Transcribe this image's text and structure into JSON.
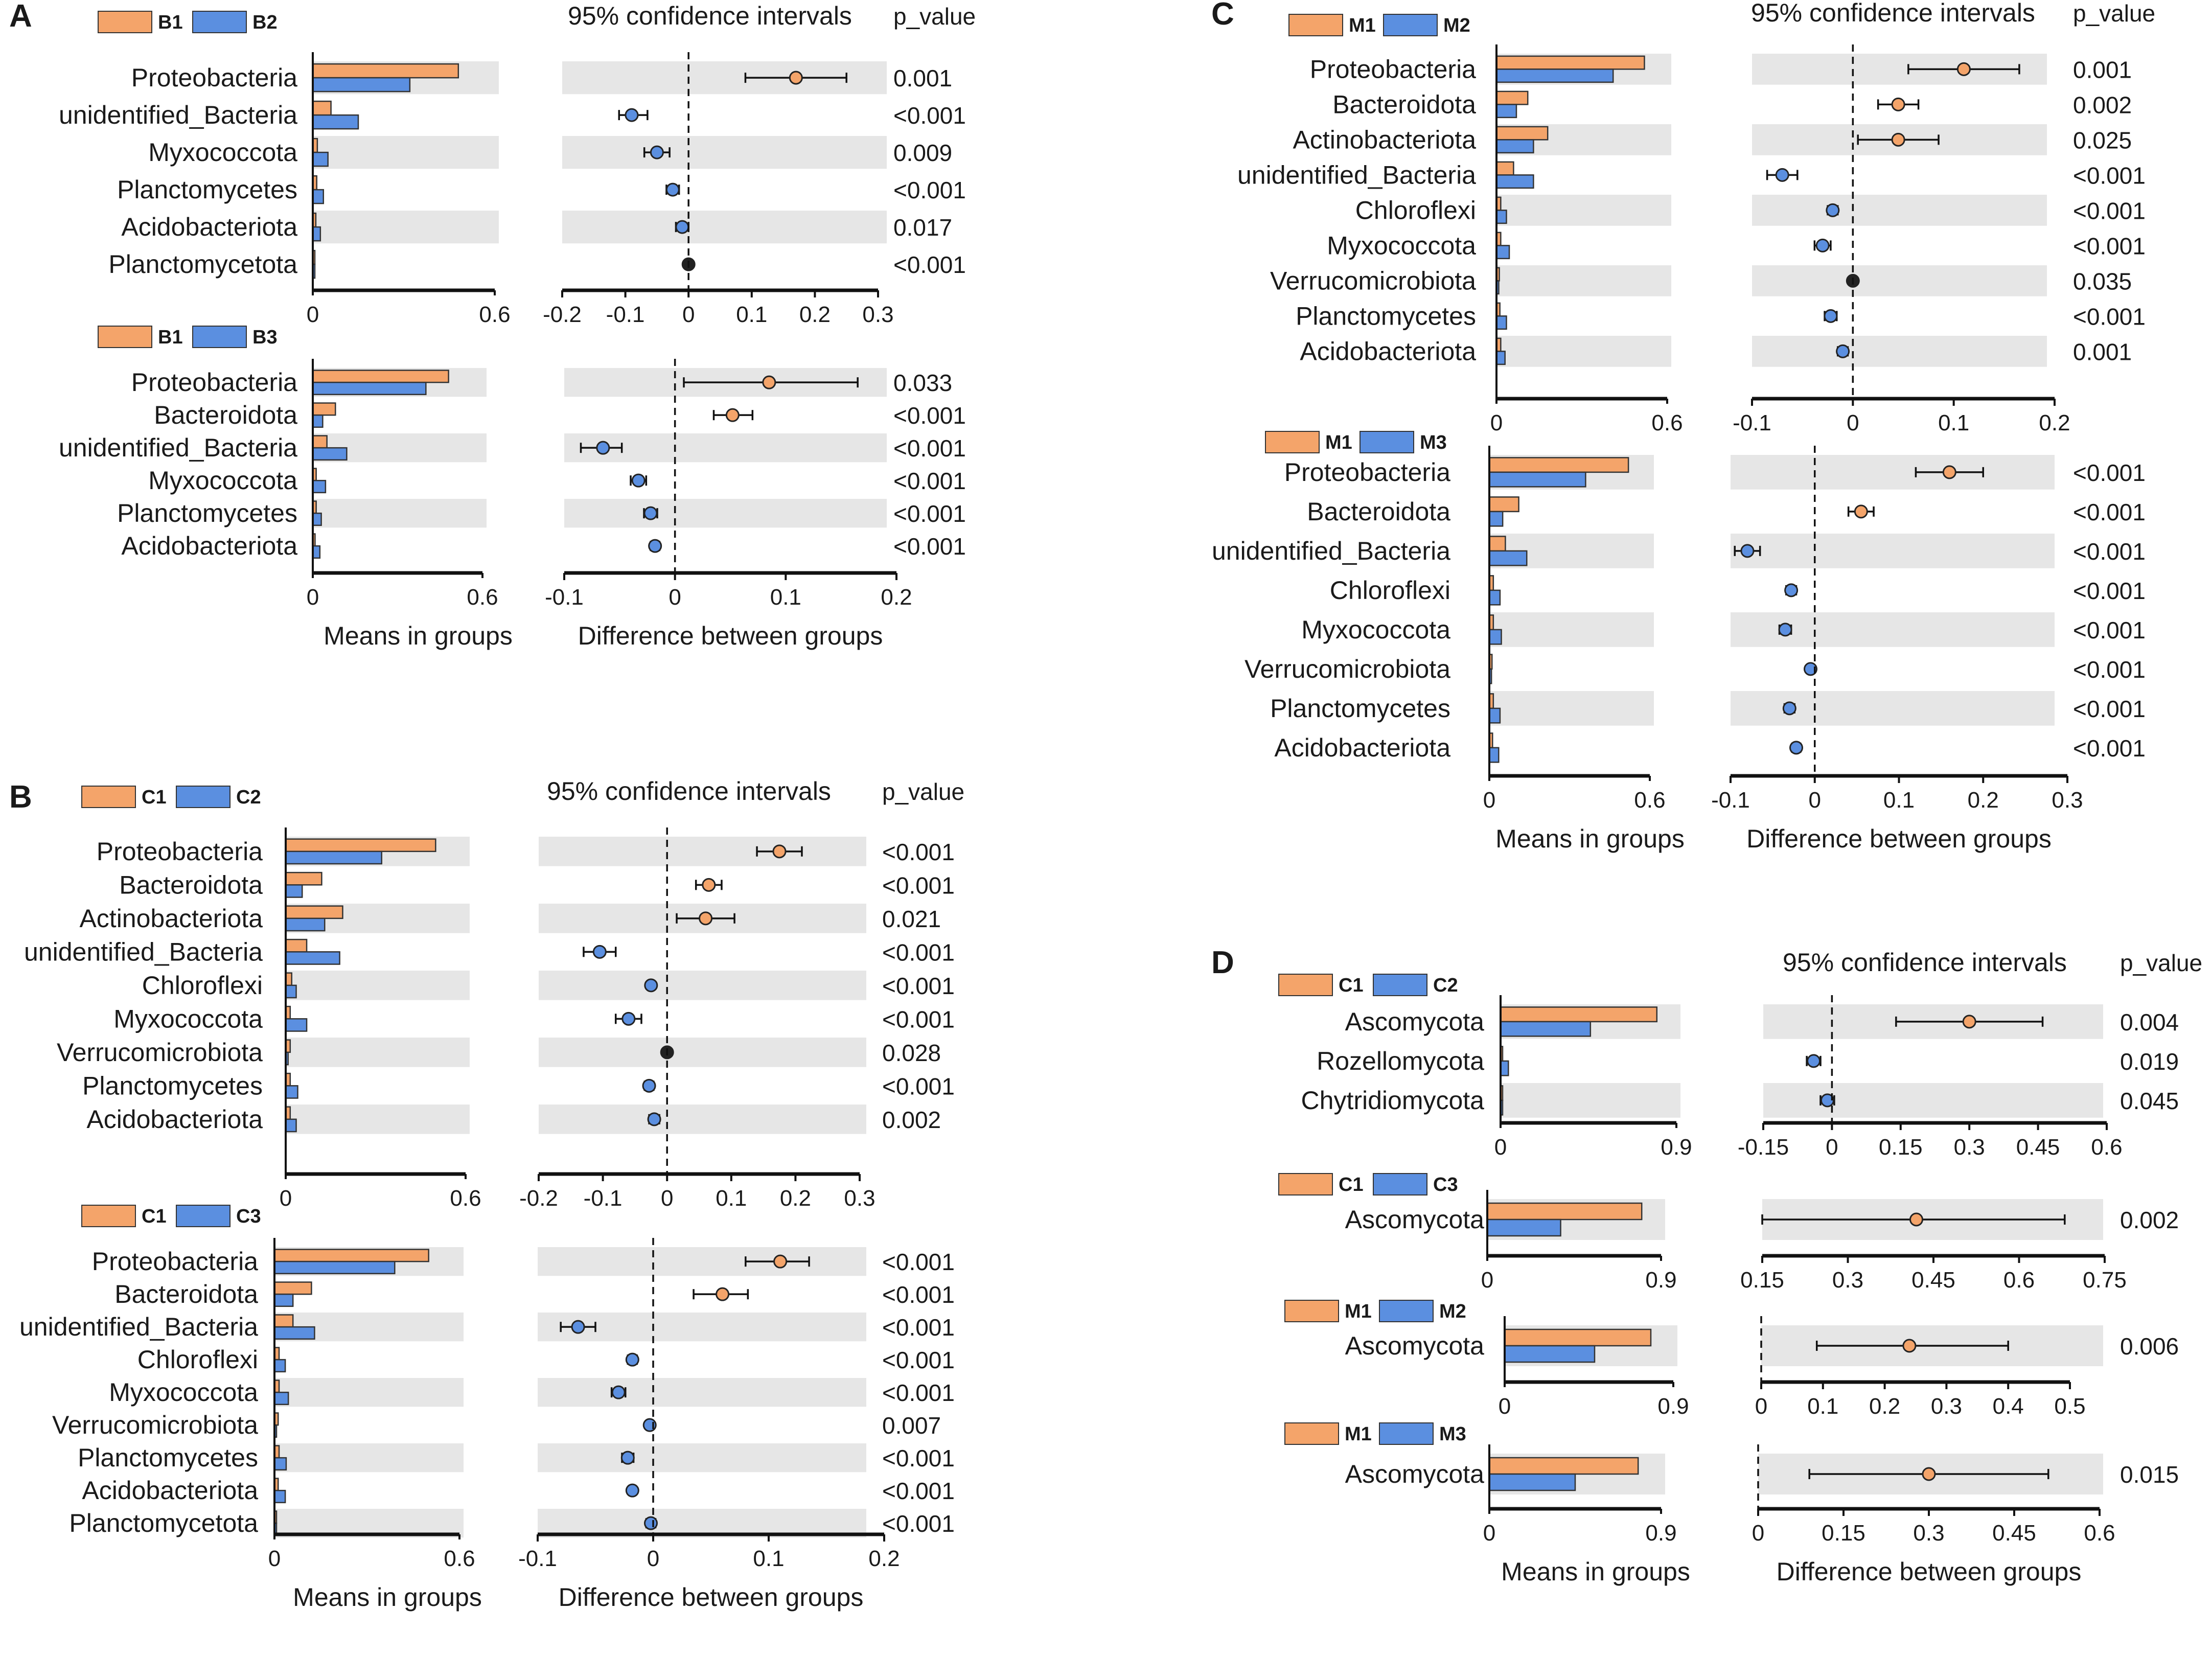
{
  "style": {
    "group1_color": "#f4a46a",
    "group2_color": "#5b8fe0",
    "band_color": "#e6e6e6",
    "ns_dot_color": "#222222"
  },
  "chart_data": [
    {
      "type": "bar",
      "panel": "A",
      "legend": [
        "B1",
        "B2"
      ],
      "ci_title": "95% confidence intervals",
      "p_title": "p_value",
      "categories": [
        "Proteobacteria",
        "unidentified_Bacteria",
        "Myxococcota",
        "Planctomycetes",
        "Acidobacteriota",
        "Planctomycetota"
      ],
      "series": [
        {
          "name": "B1",
          "values": [
            0.48,
            0.06,
            0.015,
            0.013,
            0.01,
            0.003
          ]
        },
        {
          "name": "B2",
          "values": [
            0.32,
            0.15,
            0.05,
            0.035,
            0.025,
            0.005
          ]
        }
      ],
      "difference": [
        0.17,
        -0.09,
        -0.05,
        -0.025,
        -0.01,
        0
      ],
      "ci_low": [
        0.09,
        -0.11,
        -0.07,
        -0.035,
        -0.02,
        -0.005
      ],
      "ci_high": [
        0.25,
        -0.065,
        -0.03,
        -0.015,
        0.0,
        0.005
      ],
      "p_values": [
        "0.001",
        "<0.001",
        "0.009",
        "<0.001",
        "0.017",
        "<0.001"
      ],
      "means_range": [
        0,
        0.6
      ],
      "means_ticks": [
        "0",
        "0.6"
      ],
      "diff_range": [
        -0.2,
        0.3
      ],
      "diff_ticks": [
        -0.2,
        -0.1,
        0,
        0.1,
        0.2,
        0.3
      ],
      "diff_tick_labels": [
        "-0.2",
        "-0.1",
        "0",
        "0.1",
        "0.2",
        "0.3"
      ]
    },
    {
      "type": "bar",
      "panel": "",
      "legend": [
        "B1",
        "B3"
      ],
      "categories": [
        "Proteobacteria",
        "Bacteroidota",
        "unidentified_Bacteria",
        "Myxococcota",
        "Planctomycetes",
        "Acidobacteriota"
      ],
      "series": [
        {
          "name": "B1",
          "values": [
            0.48,
            0.08,
            0.05,
            0.012,
            0.012,
            0.008
          ]
        },
        {
          "name": "B3",
          "values": [
            0.4,
            0.035,
            0.12,
            0.045,
            0.03,
            0.025
          ]
        }
      ],
      "difference": [
        0.085,
        0.052,
        -0.065,
        -0.033,
        -0.022,
        -0.018
      ],
      "ci_low": [
        0.008,
        0.035,
        -0.085,
        -0.04,
        -0.028,
        -0.022
      ],
      "ci_high": [
        0.165,
        0.07,
        -0.048,
        -0.026,
        -0.016,
        -0.014
      ],
      "p_values": [
        "0.033",
        "<0.001",
        "<0.001",
        "<0.001",
        "<0.001",
        "<0.001"
      ],
      "means_range": [
        0,
        0.6
      ],
      "means_ticks": [
        "0",
        "0.6"
      ],
      "diff_range": [
        -0.1,
        0.2
      ],
      "diff_ticks": [
        -0.1,
        0,
        0.1,
        0.2
      ],
      "diff_tick_labels": [
        "-0.1",
        "0",
        "0.1",
        "0.2"
      ],
      "means_xlabel": "Means in groups",
      "diff_xlabel": "Difference between groups"
    },
    {
      "type": "bar",
      "panel": "B",
      "legend": [
        "C1",
        "C2"
      ],
      "ci_title": "95% confidence intervals",
      "p_title": "p_value",
      "categories": [
        "Proteobacteria",
        "Bacteroidota",
        "Actinobacteriota",
        "unidentified_Bacteria",
        "Chloroflexi",
        "Myxococcota",
        "Verrucomicrobiota",
        "Planctomycetes",
        "Acidobacteriota"
      ],
      "series": [
        {
          "name": "C1",
          "values": [
            0.5,
            0.12,
            0.19,
            0.07,
            0.02,
            0.015,
            0.015,
            0.015,
            0.015
          ]
        },
        {
          "name": "C2",
          "values": [
            0.32,
            0.055,
            0.13,
            0.18,
            0.035,
            0.07,
            0.008,
            0.04,
            0.035
          ]
        }
      ],
      "difference": [
        0.175,
        0.065,
        0.06,
        -0.105,
        -0.025,
        -0.06,
        0,
        -0.028,
        -0.02
      ],
      "ci_low": [
        0.14,
        0.045,
        0.015,
        -0.13,
        -0.03,
        -0.08,
        -0.003,
        -0.035,
        -0.028
      ],
      "ci_high": [
        0.21,
        0.085,
        0.105,
        -0.08,
        -0.02,
        -0.04,
        0.003,
        -0.021,
        -0.012
      ],
      "p_values": [
        "<0.001",
        "<0.001",
        "0.021",
        "<0.001",
        "<0.001",
        "<0.001",
        "0.028",
        "<0.001",
        "0.002"
      ],
      "means_range": [
        0,
        0.6
      ],
      "means_ticks": [
        "0",
        "0.6"
      ],
      "diff_range": [
        -0.2,
        0.3
      ],
      "diff_ticks": [
        -0.2,
        -0.1,
        0,
        0.1,
        0.2,
        0.3
      ],
      "diff_tick_labels": [
        "-0.2",
        "-0.1",
        "0",
        "0.1",
        "0.2",
        "0.3"
      ]
    },
    {
      "type": "bar",
      "panel": "",
      "legend": [
        "C1",
        "C3"
      ],
      "categories": [
        "Proteobacteria",
        "Bacteroidota",
        "unidentified_Bacteria",
        "Chloroflexi",
        "Myxococcota",
        "Verrucomicrobiota",
        "Planctomycetes",
        "Acidobacteriota",
        "Planctomycetota"
      ],
      "series": [
        {
          "name": "C1",
          "values": [
            0.5,
            0.12,
            0.06,
            0.015,
            0.015,
            0.012,
            0.015,
            0.012,
            0.005
          ]
        },
        {
          "name": "C3",
          "values": [
            0.39,
            0.06,
            0.13,
            0.035,
            0.045,
            0.006,
            0.038,
            0.035,
            0.004
          ]
        }
      ],
      "difference": [
        0.11,
        0.06,
        -0.065,
        -0.018,
        -0.03,
        -0.003,
        -0.022,
        -0.018,
        -0.002
      ],
      "ci_low": [
        0.08,
        0.035,
        -0.08,
        -0.022,
        -0.036,
        -0.006,
        -0.027,
        -0.021,
        -0.006
      ],
      "ci_high": [
        0.135,
        0.082,
        -0.05,
        -0.014,
        -0.024,
        0.0,
        -0.017,
        -0.015,
        0.002
      ],
      "p_values": [
        "<0.001",
        "<0.001",
        "<0.001",
        "<0.001",
        "<0.001",
        "0.007",
        "<0.001",
        "<0.001",
        "<0.001"
      ],
      "means_range": [
        0,
        0.6
      ],
      "means_ticks": [
        "0",
        "0.6"
      ],
      "diff_range": [
        -0.1,
        0.2
      ],
      "diff_ticks": [
        -0.1,
        0,
        0.1,
        0.2
      ],
      "diff_tick_labels": [
        "-0.1",
        "0",
        "0.1",
        "0.2"
      ],
      "means_xlabel": "Means in groups",
      "diff_xlabel": "Difference between groups"
    },
    {
      "type": "bar",
      "panel": "C",
      "legend": [
        "M1",
        "M2"
      ],
      "ci_title": "95% confidence intervals",
      "p_title": "p_value",
      "categories": [
        "Proteobacteria",
        "Bacteroidota",
        "Actinobacteriota",
        "unidentified_Bacteria",
        "Chloroflexi",
        "Myxococcota",
        "Verrucomicrobiota",
        "Planctomycetes",
        "Acidobacteriota"
      ],
      "series": [
        {
          "name": "M1",
          "values": [
            0.52,
            0.11,
            0.18,
            0.06,
            0.015,
            0.015,
            0.01,
            0.012,
            0.015
          ]
        },
        {
          "name": "M2",
          "values": [
            0.41,
            0.07,
            0.13,
            0.13,
            0.035,
            0.045,
            0.008,
            0.035,
            0.03
          ]
        }
      ],
      "difference": [
        0.11,
        0.045,
        0.045,
        -0.07,
        -0.02,
        -0.03,
        0,
        -0.022,
        -0.01
      ],
      "ci_low": [
        0.055,
        0.025,
        0.005,
        -0.085,
        -0.025,
        -0.038,
        -0.003,
        -0.028,
        -0.015
      ],
      "ci_high": [
        0.165,
        0.065,
        0.085,
        -0.055,
        -0.015,
        -0.022,
        0.003,
        -0.016,
        -0.005
      ],
      "p_values": [
        "0.001",
        "0.002",
        "0.025",
        "<0.001",
        "<0.001",
        "<0.001",
        "0.035",
        "<0.001",
        "0.001"
      ],
      "means_range": [
        0,
        0.6
      ],
      "means_ticks": [
        "0",
        "0.6"
      ],
      "diff_range": [
        -0.1,
        0.2
      ],
      "diff_ticks": [
        -0.1,
        0,
        0.1,
        0.2
      ],
      "diff_tick_labels": [
        "-0.1",
        "0",
        "0.1",
        "0.2"
      ]
    },
    {
      "type": "bar",
      "panel": "",
      "legend": [
        "M1",
        "M3"
      ],
      "categories": [
        "Proteobacteria",
        "Bacteroidota",
        "unidentified_Bacteria",
        "Chloroflexi",
        "Myxococcota",
        "Verrucomicrobiota",
        "Planctomycetes",
        "Acidobacteriota"
      ],
      "series": [
        {
          "name": "M1",
          "values": [
            0.52,
            0.11,
            0.06,
            0.015,
            0.015,
            0.01,
            0.015,
            0.012
          ]
        },
        {
          "name": "M3",
          "values": [
            0.36,
            0.05,
            0.14,
            0.04,
            0.045,
            0.008,
            0.04,
            0.035
          ]
        }
      ],
      "difference": [
        0.16,
        0.055,
        -0.08,
        -0.028,
        -0.035,
        -0.005,
        -0.03,
        -0.022
      ],
      "ci_low": [
        0.12,
        0.04,
        -0.095,
        -0.034,
        -0.042,
        -0.008,
        -0.036,
        -0.027
      ],
      "ci_high": [
        0.2,
        0.07,
        -0.065,
        -0.022,
        -0.028,
        -0.002,
        -0.024,
        -0.017
      ],
      "p_values": [
        "<0.001",
        "<0.001",
        "<0.001",
        "<0.001",
        "<0.001",
        "<0.001",
        "<0.001",
        "<0.001"
      ],
      "means_range": [
        0,
        0.6
      ],
      "means_ticks": [
        "0",
        "0.6"
      ],
      "diff_range": [
        -0.1,
        0.3
      ],
      "diff_ticks": [
        -0.1,
        0,
        0.1,
        0.2,
        0.3
      ],
      "diff_tick_labels": [
        "-0.1",
        "0",
        "0.1",
        "0.2",
        "0.3"
      ],
      "means_xlabel": "Means in groups",
      "diff_xlabel": "Difference between groups"
    },
    {
      "type": "bar",
      "panel": "D",
      "legend": [
        "C1",
        "C2"
      ],
      "ci_title": "95% confidence intervals",
      "p_title": "p_value",
      "categories": [
        "Ascomycota",
        "Rozellomycota",
        "Chytridiomycota"
      ],
      "series": [
        {
          "name": "C1",
          "values": [
            0.8,
            0.01,
            0.005
          ]
        },
        {
          "name": "C2",
          "values": [
            0.46,
            0.04,
            0.008
          ]
        }
      ],
      "difference": [
        0.3,
        -0.04,
        -0.01
      ],
      "ci_low": [
        0.14,
        -0.055,
        -0.025
      ],
      "ci_high": [
        0.46,
        -0.025,
        0.005
      ],
      "p_values": [
        "0.004",
        "0.019",
        "0.045"
      ],
      "means_range": [
        0,
        0.9
      ],
      "means_ticks": [
        "0",
        "0.9"
      ],
      "diff_range": [
        -0.15,
        0.6
      ],
      "diff_ticks": [
        -0.15,
        0,
        0.15,
        0.3,
        0.45,
        0.6
      ],
      "diff_tick_labels": [
        "-0.15",
        "0",
        "0.15",
        "0.3",
        "0.45",
        "0.6"
      ]
    },
    {
      "type": "bar",
      "panel": "",
      "legend": [
        "C1",
        "C3"
      ],
      "categories": [
        "Ascomycota"
      ],
      "series": [
        {
          "name": "C1",
          "values": [
            0.8
          ]
        },
        {
          "name": "C3",
          "values": [
            0.38
          ]
        }
      ],
      "difference": [
        0.42
      ],
      "ci_low": [
        0.15
      ],
      "ci_high": [
        0.68
      ],
      "p_values": [
        "0.002"
      ],
      "means_range": [
        0,
        0.9
      ],
      "means_ticks": [
        "0",
        "0.9"
      ],
      "diff_range": [
        0.15,
        0.75
      ],
      "diff_ticks": [
        0.15,
        0.3,
        0.45,
        0.6,
        0.75
      ],
      "diff_tick_labels": [
        "0.15",
        "0.3",
        "0.45",
        "0.6",
        "0.75"
      ]
    },
    {
      "type": "bar",
      "panel": "",
      "legend": [
        "M1",
        "M2"
      ],
      "categories": [
        "Ascomycota"
      ],
      "series": [
        {
          "name": "M1",
          "values": [
            0.78
          ]
        },
        {
          "name": "M2",
          "values": [
            0.48
          ]
        }
      ],
      "difference": [
        0.24
      ],
      "ci_low": [
        0.09
      ],
      "ci_high": [
        0.4
      ],
      "p_values": [
        "0.006"
      ],
      "means_range": [
        0,
        0.9
      ],
      "means_ticks": [
        "0",
        "0.9"
      ],
      "diff_range": [
        0,
        0.5
      ],
      "diff_ticks": [
        0,
        0.1,
        0.2,
        0.3,
        0.4,
        0.5
      ],
      "diff_tick_labels": [
        "0",
        "0.1",
        "0.2",
        "0.3",
        "0.4",
        "0.5"
      ]
    },
    {
      "type": "bar",
      "panel": "",
      "legend": [
        "M1",
        "M3"
      ],
      "categories": [
        "Ascomycota"
      ],
      "series": [
        {
          "name": "M1",
          "values": [
            0.78
          ]
        },
        {
          "name": "M3",
          "values": [
            0.45
          ]
        }
      ],
      "difference": [
        0.3
      ],
      "ci_low": [
        0.09
      ],
      "ci_high": [
        0.51
      ],
      "p_values": [
        "0.015"
      ],
      "means_range": [
        0,
        0.9
      ],
      "means_ticks": [
        "0",
        "0.9"
      ],
      "diff_range": [
        0,
        0.6
      ],
      "diff_ticks": [
        0,
        0.15,
        0.3,
        0.45,
        0.6
      ],
      "diff_tick_labels": [
        "0",
        "0.15",
        "0.3",
        "0.45",
        "0.6"
      ],
      "means_xlabel": "Means in groups",
      "diff_xlabel": "Difference between groups"
    }
  ]
}
